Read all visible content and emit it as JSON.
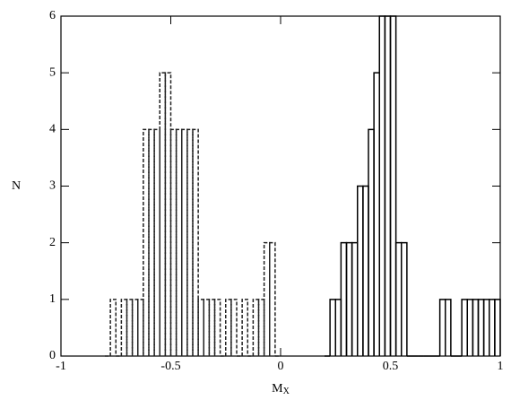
{
  "chart_data": {
    "type": "histogram",
    "xlabel": "M",
    "xlabel_subscript": "X",
    "ylabel": "N",
    "xlim": [
      -1,
      1
    ],
    "ylim": [
      0,
      6
    ],
    "xticks": [
      -1,
      -0.5,
      0,
      0.5,
      1
    ],
    "yticks": [
      0,
      1,
      2,
      3,
      4,
      5,
      6
    ],
    "series": [
      {
        "color": "#222222",
        "dashed": true,
        "bins": [
          -0.8,
          -0.775,
          -0.75,
          -0.725,
          -0.7,
          -0.675,
          -0.65,
          -0.625,
          -0.6,
          -0.575,
          -0.55,
          -0.525,
          -0.5,
          -0.475,
          -0.45,
          -0.425,
          -0.4,
          -0.375,
          -0.35,
          -0.325,
          -0.3,
          -0.275,
          -0.25,
          -0.225,
          -0.2,
          -0.175,
          -0.15,
          -0.125,
          -0.1,
          -0.075,
          -0.05,
          -0.025,
          0
        ],
        "values": [
          0,
          1,
          0,
          1,
          1,
          1,
          1,
          4,
          4,
          4,
          5,
          5,
          4,
          4,
          4,
          4,
          4,
          1,
          1,
          1,
          1,
          0,
          1,
          1,
          0,
          1,
          0,
          1,
          1,
          2,
          2,
          0
        ]
      },
      {
        "color": "#000000",
        "dashed": false,
        "bins": [
          0.2,
          0.225,
          0.25,
          0.275,
          0.3,
          0.325,
          0.35,
          0.375,
          0.4,
          0.425,
          0.45,
          0.475,
          0.5,
          0.525,
          0.55,
          0.575,
          0.6,
          0.625,
          0.65,
          0.675,
          0.7,
          0.725,
          0.75,
          0.775,
          0.8,
          0.825,
          0.85,
          0.875,
          0.9,
          0.925,
          0.95,
          0.975,
          1
        ],
        "values": [
          0,
          1,
          1,
          2,
          2,
          2,
          3,
          3,
          4,
          5,
          6,
          6,
          6,
          2,
          2,
          0,
          0,
          0,
          0,
          0,
          0,
          1,
          1,
          0,
          0,
          1,
          1,
          1,
          1,
          1,
          1,
          1
        ]
      }
    ]
  }
}
